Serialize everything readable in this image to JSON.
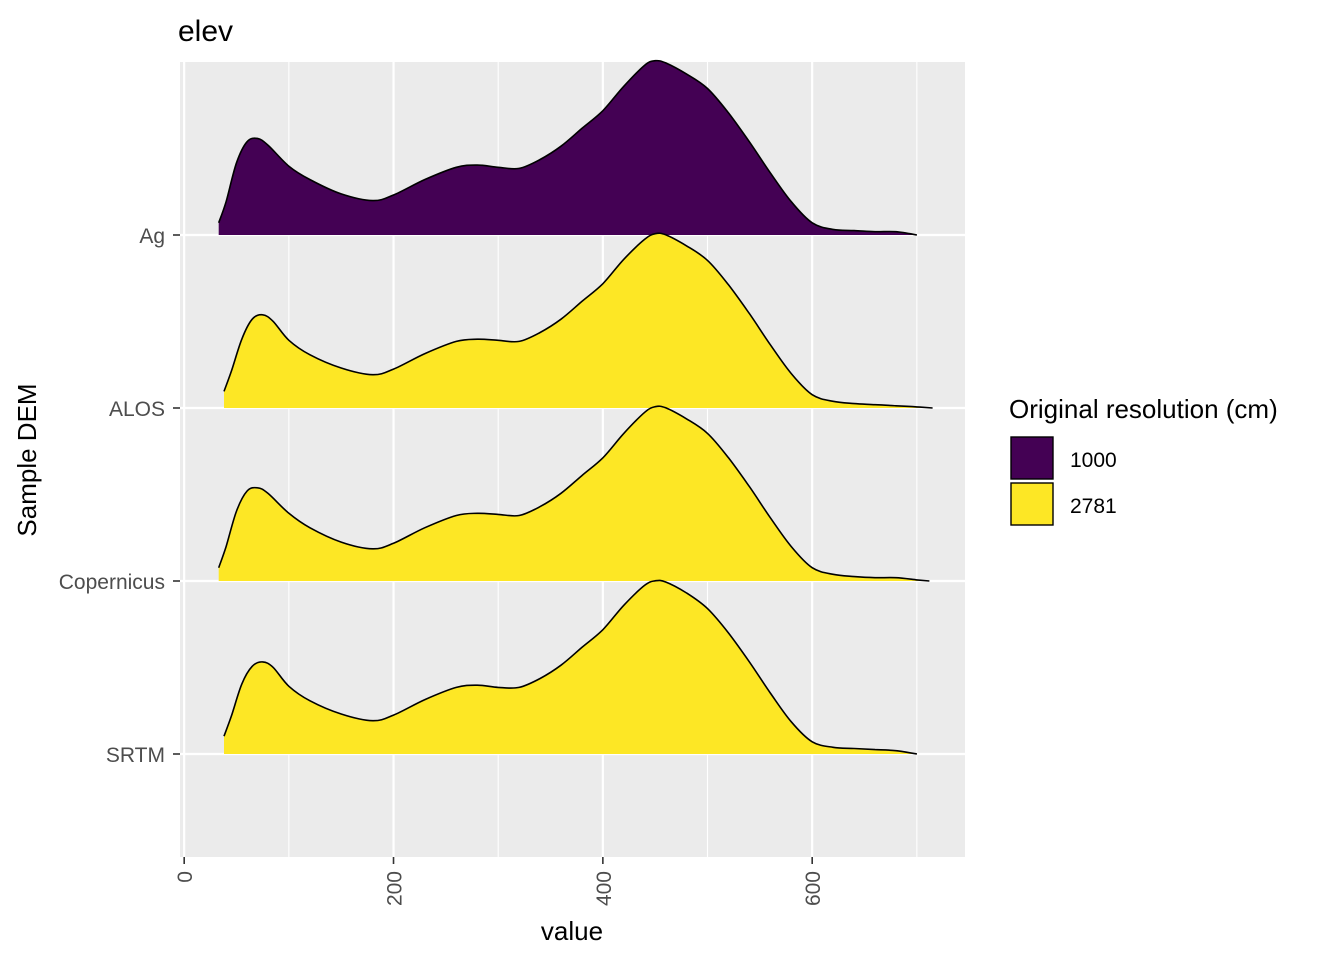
{
  "chart_data": {
    "type": "ridgeline",
    "title": "elev",
    "xlabel": "value",
    "ylabel": "Sample DEM",
    "xlim": [
      -4,
      746
    ],
    "x_ticks": [
      0,
      200,
      400,
      600
    ],
    "x_tick_labels": [
      "0",
      "200",
      "400",
      "600"
    ],
    "categories": [
      "SRTM",
      "Copernicus",
      "ALOS",
      "Ag"
    ],
    "grid": true,
    "legend": {
      "title": "Original resolution (cm)",
      "position": "right",
      "entries": [
        {
          "label": "1000",
          "color": "#440154"
        },
        {
          "label": "2781",
          "color": "#fde725"
        }
      ]
    },
    "series": [
      {
        "category": "Ag",
        "resolution": "1000",
        "color": "#440154",
        "x": [
          33,
          40,
          50,
          60,
          70,
          80,
          100,
          120,
          150,
          180,
          200,
          230,
          260,
          280,
          300,
          320,
          340,
          360,
          380,
          400,
          420,
          440,
          450,
          460,
          480,
          500,
          520,
          540,
          560,
          580,
          600,
          620,
          640,
          660,
          680,
          700
        ],
        "density": [
          0.11,
          0.3,
          0.65,
          0.84,
          0.87,
          0.81,
          0.62,
          0.5,
          0.37,
          0.31,
          0.36,
          0.5,
          0.61,
          0.63,
          0.61,
          0.6,
          0.68,
          0.8,
          0.96,
          1.12,
          1.34,
          1.53,
          1.57,
          1.55,
          1.45,
          1.32,
          1.1,
          0.84,
          0.56,
          0.3,
          0.11,
          0.05,
          0.04,
          0.03,
          0.03,
          0.0
        ]
      },
      {
        "category": "ALOS",
        "resolution": "2781",
        "color": "#fde725",
        "x": [
          38,
          45,
          55,
          65,
          75,
          85,
          100,
          120,
          150,
          180,
          200,
          230,
          260,
          280,
          300,
          320,
          340,
          360,
          380,
          400,
          420,
          440,
          450,
          460,
          480,
          500,
          520,
          540,
          560,
          580,
          600,
          620,
          640,
          660,
          680,
          700,
          715
        ],
        "density": [
          0.15,
          0.33,
          0.62,
          0.8,
          0.84,
          0.78,
          0.61,
          0.48,
          0.36,
          0.3,
          0.35,
          0.49,
          0.6,
          0.62,
          0.61,
          0.6,
          0.68,
          0.8,
          0.96,
          1.12,
          1.34,
          1.52,
          1.57,
          1.56,
          1.46,
          1.33,
          1.11,
          0.85,
          0.57,
          0.31,
          0.12,
          0.06,
          0.04,
          0.03,
          0.02,
          0.01,
          0.0
        ]
      },
      {
        "category": "Copernicus",
        "resolution": "2781",
        "color": "#fde725",
        "x": [
          33,
          40,
          50,
          60,
          70,
          80,
          100,
          120,
          150,
          180,
          200,
          230,
          260,
          280,
          300,
          320,
          340,
          360,
          380,
          400,
          420,
          440,
          450,
          460,
          480,
          500,
          520,
          540,
          560,
          580,
          600,
          620,
          640,
          660,
          680,
          700,
          712
        ],
        "density": [
          0.12,
          0.31,
          0.63,
          0.81,
          0.84,
          0.79,
          0.61,
          0.48,
          0.35,
          0.29,
          0.34,
          0.48,
          0.59,
          0.61,
          0.6,
          0.59,
          0.67,
          0.79,
          0.95,
          1.11,
          1.33,
          1.52,
          1.57,
          1.56,
          1.46,
          1.33,
          1.11,
          0.85,
          0.57,
          0.31,
          0.12,
          0.06,
          0.04,
          0.03,
          0.03,
          0.01,
          0.0
        ]
      },
      {
        "category": "SRTM",
        "resolution": "2781",
        "color": "#fde725",
        "x": [
          38,
          45,
          55,
          65,
          75,
          85,
          100,
          120,
          150,
          180,
          200,
          230,
          260,
          280,
          300,
          320,
          340,
          360,
          380,
          400,
          420,
          440,
          450,
          460,
          480,
          500,
          520,
          540,
          560,
          580,
          600,
          620,
          640,
          660,
          680,
          700
        ],
        "density": [
          0.16,
          0.34,
          0.63,
          0.79,
          0.83,
          0.78,
          0.61,
          0.48,
          0.36,
          0.3,
          0.35,
          0.49,
          0.6,
          0.62,
          0.6,
          0.6,
          0.68,
          0.8,
          0.96,
          1.12,
          1.34,
          1.52,
          1.56,
          1.55,
          1.45,
          1.31,
          1.09,
          0.83,
          0.55,
          0.29,
          0.11,
          0.06,
          0.05,
          0.04,
          0.03,
          0.0
        ]
      }
    ]
  }
}
